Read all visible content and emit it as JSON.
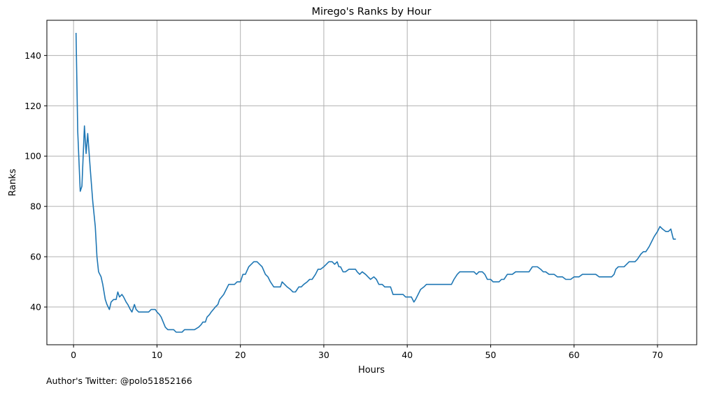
{
  "chart_data": {
    "type": "line",
    "title": "Mirego's Ranks by Hour",
    "xlabel": "Hours",
    "ylabel": "Ranks",
    "xlim": [
      -3.2,
      74.7
    ],
    "ylim": [
      25,
      154
    ],
    "xticks": [
      0,
      10,
      20,
      30,
      40,
      50,
      60,
      70
    ],
    "yticks": [
      40,
      60,
      80,
      100,
      120,
      140
    ],
    "grid": true,
    "series": [
      {
        "color": "#1f77b4",
        "points": [
          [
            0.3,
            149
          ],
          [
            0.5,
            110
          ],
          [
            0.8,
            86
          ],
          [
            1.0,
            88
          ],
          [
            1.3,
            112
          ],
          [
            1.5,
            101
          ],
          [
            1.7,
            109
          ],
          [
            2.0,
            95
          ],
          [
            2.3,
            82
          ],
          [
            2.6,
            72
          ],
          [
            2.8,
            60
          ],
          [
            3.0,
            54
          ],
          [
            3.3,
            52
          ],
          [
            3.5,
            49
          ],
          [
            3.8,
            43
          ],
          [
            4.0,
            41
          ],
          [
            4.3,
            39
          ],
          [
            4.5,
            42
          ],
          [
            4.8,
            43
          ],
          [
            5.1,
            43
          ],
          [
            5.3,
            46
          ],
          [
            5.5,
            44
          ],
          [
            5.8,
            45
          ],
          [
            6.0,
            44
          ],
          [
            6.3,
            42
          ],
          [
            6.5,
            41
          ],
          [
            6.8,
            39
          ],
          [
            7.0,
            38
          ],
          [
            7.3,
            41
          ],
          [
            7.5,
            39
          ],
          [
            7.8,
            38
          ],
          [
            8.0,
            38
          ],
          [
            8.5,
            38
          ],
          [
            9.0,
            38
          ],
          [
            9.3,
            39
          ],
          [
            9.8,
            39
          ],
          [
            10.0,
            38
          ],
          [
            10.3,
            37
          ],
          [
            10.5,
            36
          ],
          [
            11.0,
            32
          ],
          [
            11.3,
            31
          ],
          [
            11.8,
            31
          ],
          [
            12.0,
            31
          ],
          [
            12.3,
            30
          ],
          [
            12.8,
            30
          ],
          [
            13.0,
            30
          ],
          [
            13.3,
            31
          ],
          [
            14.0,
            31
          ],
          [
            14.5,
            31
          ],
          [
            15.0,
            32
          ],
          [
            15.3,
            33
          ],
          [
            15.5,
            34
          ],
          [
            15.8,
            34
          ],
          [
            16.0,
            36
          ],
          [
            16.3,
            37
          ],
          [
            16.5,
            38
          ],
          [
            17.0,
            40
          ],
          [
            17.3,
            41
          ],
          [
            17.5,
            43
          ],
          [
            18.0,
            45
          ],
          [
            18.3,
            47
          ],
          [
            18.6,
            49
          ],
          [
            19.0,
            49
          ],
          [
            19.3,
            49
          ],
          [
            19.6,
            50
          ],
          [
            20.0,
            50
          ],
          [
            20.3,
            53
          ],
          [
            20.6,
            53
          ],
          [
            21.0,
            56
          ],
          [
            21.3,
            57
          ],
          [
            21.6,
            58
          ],
          [
            22.0,
            58
          ],
          [
            22.3,
            57
          ],
          [
            22.6,
            56
          ],
          [
            23.0,
            53
          ],
          [
            23.3,
            52
          ],
          [
            23.6,
            50
          ],
          [
            24.0,
            48
          ],
          [
            24.3,
            48
          ],
          [
            24.8,
            48
          ],
          [
            25.0,
            50
          ],
          [
            25.3,
            49
          ],
          [
            25.6,
            48
          ],
          [
            26.0,
            47
          ],
          [
            26.3,
            46
          ],
          [
            26.6,
            46
          ],
          [
            27.0,
            48
          ],
          [
            27.3,
            48
          ],
          [
            27.6,
            49
          ],
          [
            28.0,
            50
          ],
          [
            28.3,
            51
          ],
          [
            28.6,
            51
          ],
          [
            29.0,
            53
          ],
          [
            29.3,
            55
          ],
          [
            29.6,
            55
          ],
          [
            30.0,
            56
          ],
          [
            30.3,
            57
          ],
          [
            30.6,
            58
          ],
          [
            31.0,
            58
          ],
          [
            31.3,
            57
          ],
          [
            31.6,
            58
          ],
          [
            31.8,
            56
          ],
          [
            32.0,
            56
          ],
          [
            32.3,
            54
          ],
          [
            32.6,
            54
          ],
          [
            33.0,
            55
          ],
          [
            33.3,
            55
          ],
          [
            33.8,
            55
          ],
          [
            34.0,
            54
          ],
          [
            34.3,
            53
          ],
          [
            34.6,
            54
          ],
          [
            35.0,
            53
          ],
          [
            35.3,
            52
          ],
          [
            35.6,
            51
          ],
          [
            36.0,
            52
          ],
          [
            36.3,
            51
          ],
          [
            36.6,
            49
          ],
          [
            37.0,
            49
          ],
          [
            37.3,
            48
          ],
          [
            37.6,
            48
          ],
          [
            38.0,
            48
          ],
          [
            38.3,
            45
          ],
          [
            38.6,
            45
          ],
          [
            39.0,
            45
          ],
          [
            39.5,
            45
          ],
          [
            39.8,
            44
          ],
          [
            40.0,
            44
          ],
          [
            40.5,
            44
          ],
          [
            40.8,
            42
          ],
          [
            41.0,
            43
          ],
          [
            41.3,
            45
          ],
          [
            41.6,
            47
          ],
          [
            42.0,
            48
          ],
          [
            42.3,
            49
          ],
          [
            42.6,
            49
          ],
          [
            43.0,
            49
          ],
          [
            44.0,
            49
          ],
          [
            45.0,
            49
          ],
          [
            45.3,
            49
          ],
          [
            45.6,
            51
          ],
          [
            46.0,
            53
          ],
          [
            46.3,
            54
          ],
          [
            46.6,
            54
          ],
          [
            47.0,
            54
          ],
          [
            47.5,
            54
          ],
          [
            48.0,
            54
          ],
          [
            48.3,
            53
          ],
          [
            48.6,
            54
          ],
          [
            49.0,
            54
          ],
          [
            49.3,
            53
          ],
          [
            49.6,
            51
          ],
          [
            50.0,
            51
          ],
          [
            50.3,
            50
          ],
          [
            50.6,
            50
          ],
          [
            51.0,
            50
          ],
          [
            51.3,
            51
          ],
          [
            51.6,
            51
          ],
          [
            52.0,
            53
          ],
          [
            52.3,
            53
          ],
          [
            52.6,
            53
          ],
          [
            53.0,
            54
          ],
          [
            53.3,
            54
          ],
          [
            54.0,
            54
          ],
          [
            54.6,
            54
          ],
          [
            55.0,
            56
          ],
          [
            55.3,
            56
          ],
          [
            55.6,
            56
          ],
          [
            56.0,
            55
          ],
          [
            56.3,
            54
          ],
          [
            56.6,
            54
          ],
          [
            57.0,
            53
          ],
          [
            57.3,
            53
          ],
          [
            57.6,
            53
          ],
          [
            58.0,
            52
          ],
          [
            58.3,
            52
          ],
          [
            58.6,
            52
          ],
          [
            59.0,
            51
          ],
          [
            59.3,
            51
          ],
          [
            59.6,
            51
          ],
          [
            60.0,
            52
          ],
          [
            60.3,
            52
          ],
          [
            60.6,
            52
          ],
          [
            61.0,
            53
          ],
          [
            61.3,
            53
          ],
          [
            62.0,
            53
          ],
          [
            62.6,
            53
          ],
          [
            63.0,
            52
          ],
          [
            63.3,
            52
          ],
          [
            63.6,
            52
          ],
          [
            64.0,
            52
          ],
          [
            64.5,
            52
          ],
          [
            64.8,
            53
          ],
          [
            65.0,
            55
          ],
          [
            65.3,
            56
          ],
          [
            65.6,
            56
          ],
          [
            66.0,
            56
          ],
          [
            66.3,
            57
          ],
          [
            66.6,
            58
          ],
          [
            67.0,
            58
          ],
          [
            67.3,
            58
          ],
          [
            67.6,
            59
          ],
          [
            68.0,
            61
          ],
          [
            68.3,
            62
          ],
          [
            68.6,
            62
          ],
          [
            69.0,
            64
          ],
          [
            69.3,
            66
          ],
          [
            69.6,
            68
          ],
          [
            70.0,
            70
          ],
          [
            70.3,
            72
          ],
          [
            70.6,
            71
          ],
          [
            71.0,
            70
          ],
          [
            71.3,
            70
          ],
          [
            71.6,
            71
          ],
          [
            71.9,
            67
          ],
          [
            72.2,
            67
          ]
        ]
      }
    ]
  },
  "footer": {
    "credit": "Author's Twitter: @polo51852166"
  }
}
